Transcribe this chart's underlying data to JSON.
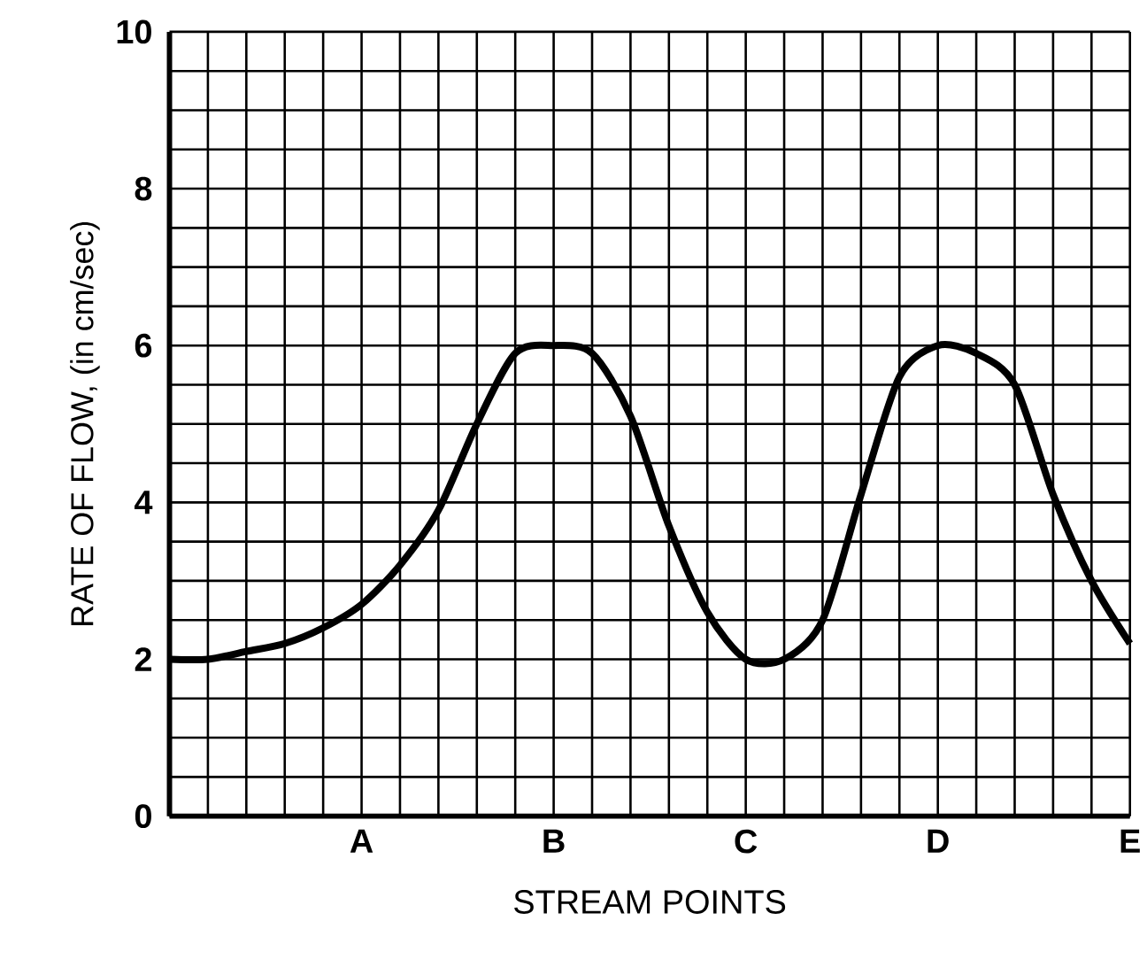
{
  "chart_data": {
    "type": "line",
    "xlabel": "STREAM POINTS",
    "ylabel": "RATE OF FLOW, (in cm/sec)",
    "categories": [
      null,
      null,
      null,
      null,
      null,
      "A",
      null,
      null,
      null,
      null,
      "B",
      null,
      null,
      null,
      null,
      "C",
      null,
      null,
      null,
      null,
      "D",
      null,
      null,
      null,
      null,
      "E"
    ],
    "ylim": [
      0,
      10
    ],
    "yticks": [
      0,
      2,
      4,
      6,
      8,
      10
    ],
    "grid": true,
    "marker": "none",
    "line_style": "solid",
    "series": [
      {
        "color": "#000000",
        "values": [
          2.0,
          2.0,
          2.1,
          2.2,
          2.4,
          2.7,
          3.2,
          3.9,
          5.0,
          5.9,
          6.0,
          5.9,
          5.1,
          3.7,
          2.6,
          2.0,
          2.0,
          2.5,
          4.1,
          5.6,
          6.0,
          5.9,
          5.5,
          4.1,
          3.0,
          2.2
        ]
      }
    ]
  }
}
